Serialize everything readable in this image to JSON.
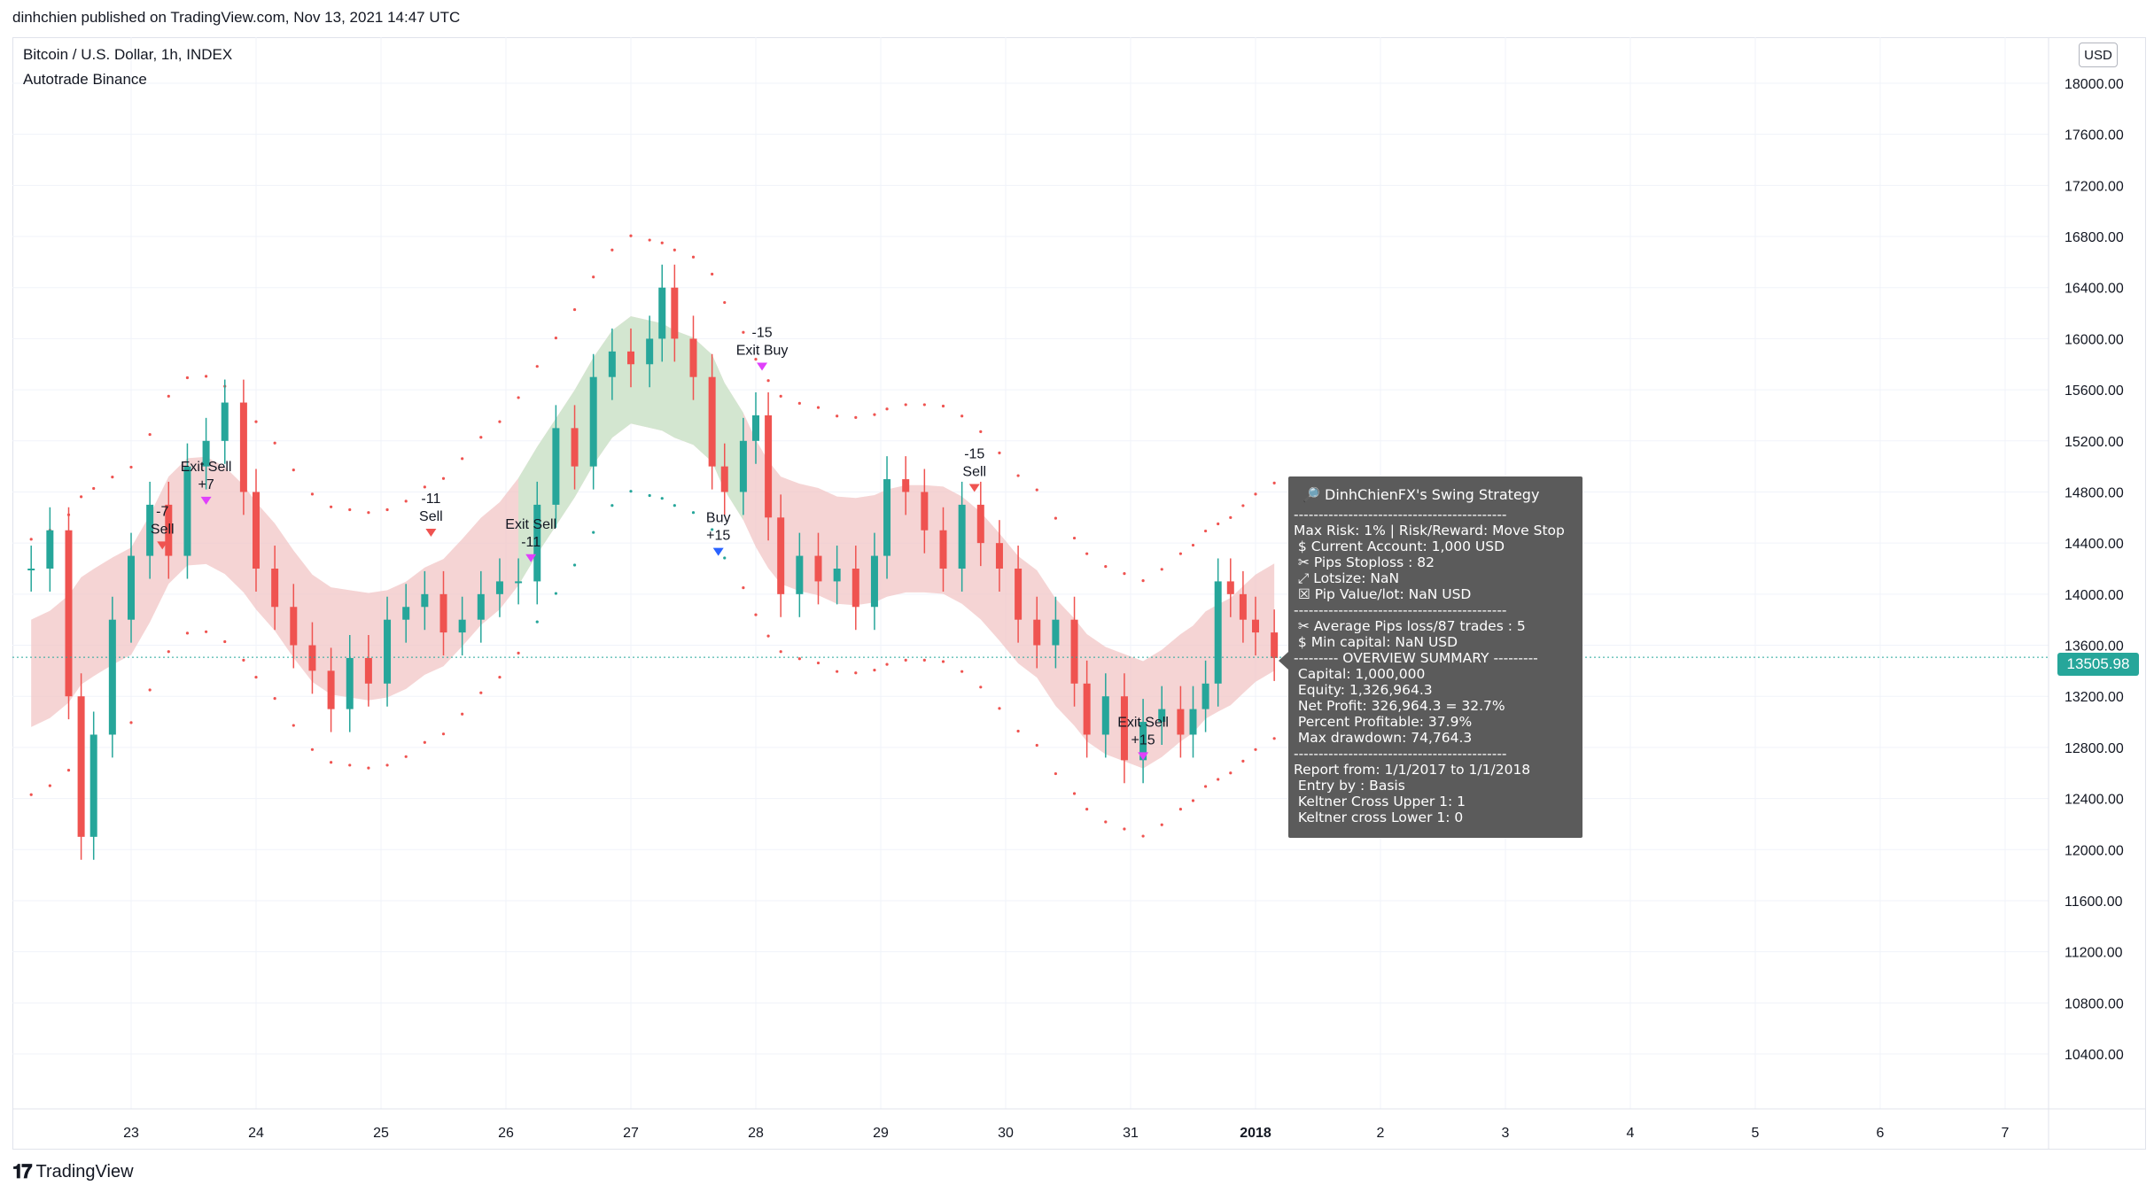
{
  "header": {
    "published_by": "dinhchien published on TradingView.com, Nov 13, 2021 14:47 UTC"
  },
  "chart_header": {
    "title": "Bitcoin / U.S. Dollar, 1h, INDEX",
    "subtitle": "Autotrade Binance",
    "currency_badge": "USD"
  },
  "footer": {
    "logo_text": "TradingView"
  },
  "chart_data": {
    "type": "candlestick",
    "title": "Bitcoin / U.S. Dollar, 1h, INDEX",
    "x_ticks": [
      "23",
      "24",
      "25",
      "26",
      "27",
      "28",
      "29",
      "30",
      "31",
      "2018",
      "2",
      "3",
      "4",
      "5",
      "6",
      "7"
    ],
    "y_ticks": [
      10400,
      10800,
      11200,
      11600,
      12000,
      12400,
      12800,
      13200,
      13600,
      14000,
      14400,
      14800,
      15200,
      15600,
      16000,
      16400,
      16800,
      17200,
      17600,
      18000
    ],
    "ylim": [
      10100,
      18300
    ],
    "last_price": "13505.98",
    "colors": {
      "up": "#26a69a",
      "down": "#ef5350",
      "band_red": "#f2c6c6",
      "band_green": "#cfe8cf",
      "stop_line": "#f44336",
      "trail": "#b71c3a",
      "grid": "#f0f3fa"
    },
    "series": [
      {
        "name": "price-close",
        "points": [
          [
            22.2,
            14200
          ],
          [
            22.35,
            14500
          ],
          [
            22.5,
            13200
          ],
          [
            22.6,
            12100
          ],
          [
            22.7,
            12900
          ],
          [
            22.85,
            13800
          ],
          [
            23.0,
            14300
          ],
          [
            23.15,
            14700
          ],
          [
            23.3,
            14300
          ],
          [
            23.45,
            15000
          ],
          [
            23.6,
            15200
          ],
          [
            23.75,
            15500
          ],
          [
            23.9,
            14800
          ],
          [
            24.0,
            14200
          ],
          [
            24.15,
            13900
          ],
          [
            24.3,
            13600
          ],
          [
            24.45,
            13400
          ],
          [
            24.6,
            13100
          ],
          [
            24.75,
            13500
          ],
          [
            24.9,
            13300
          ],
          [
            25.05,
            13800
          ],
          [
            25.2,
            13900
          ],
          [
            25.35,
            14000
          ],
          [
            25.5,
            13700
          ],
          [
            25.65,
            13800
          ],
          [
            25.8,
            14000
          ],
          [
            25.95,
            14100
          ],
          [
            26.1,
            14100
          ],
          [
            26.25,
            14700
          ],
          [
            26.4,
            15300
          ],
          [
            26.55,
            15000
          ],
          [
            26.7,
            15700
          ],
          [
            26.85,
            15900
          ],
          [
            27.0,
            15800
          ],
          [
            27.15,
            16000
          ],
          [
            27.25,
            16400
          ],
          [
            27.35,
            16000
          ],
          [
            27.5,
            15700
          ],
          [
            27.65,
            15000
          ],
          [
            27.75,
            14800
          ],
          [
            27.9,
            15200
          ],
          [
            28.0,
            15400
          ],
          [
            28.1,
            14600
          ],
          [
            28.2,
            14000
          ],
          [
            28.35,
            14300
          ],
          [
            28.5,
            14100
          ],
          [
            28.65,
            14200
          ],
          [
            28.8,
            13900
          ],
          [
            28.95,
            14300
          ],
          [
            29.05,
            14900
          ],
          [
            29.2,
            14800
          ],
          [
            29.35,
            14500
          ],
          [
            29.5,
            14200
          ],
          [
            29.65,
            14700
          ],
          [
            29.8,
            14400
          ],
          [
            29.95,
            14200
          ],
          [
            30.1,
            13800
          ],
          [
            30.25,
            13600
          ],
          [
            30.4,
            13800
          ],
          [
            30.55,
            13300
          ],
          [
            30.65,
            12900
          ],
          [
            30.8,
            13200
          ],
          [
            30.95,
            12700
          ],
          [
            31.1,
            13000
          ],
          [
            31.25,
            13100
          ],
          [
            31.4,
            12900
          ],
          [
            31.5,
            13100
          ],
          [
            31.6,
            13300
          ],
          [
            31.7,
            14100
          ],
          [
            31.8,
            14000
          ],
          [
            31.9,
            13800
          ],
          [
            32.0,
            13700
          ],
          [
            32.15,
            13500
          ]
        ]
      }
    ],
    "markers": [
      {
        "label_top": "-7",
        "label_bottom": "Sell",
        "color": "#ef5350"
      },
      {
        "label_top": "Exit Sell",
        "label_bottom": "+7",
        "color": "#e040fb"
      },
      {
        "label_top": "-11",
        "label_bottom": "Sell",
        "color": "#ef5350"
      },
      {
        "label_top": "Exit Sell",
        "label_bottom": "-11",
        "color": "#e040fb"
      },
      {
        "label_top": "Buy",
        "label_bottom": "+15",
        "color": "#2962ff"
      },
      {
        "label_top": "-15",
        "label_bottom": "Exit Buy",
        "color": "#e040fb"
      },
      {
        "label_top": "-15",
        "label_bottom": "Sell",
        "color": "#ef5350"
      },
      {
        "label_top": "Exit Sell",
        "label_bottom": "+15",
        "color": "#e040fb"
      }
    ]
  },
  "stats": {
    "title": "🔎 DinhChienFX's Swing Strategy",
    "lines": [
      "-------------------------------------------",
      "Max Risk: 1% | Risk/Reward: Move Stop",
      " $ Current Account: 1,000 USD",
      " ✂ Pips Stoploss : 82",
      " ⤢ Lotsize: NaN",
      " ☒ Pip Value/lot: NaN USD",
      "-------------------------------------------",
      " ✂ Average Pips loss/87 trades : 5",
      " $ Min capital: NaN USD",
      "--------- OVERVIEW SUMMARY ---------",
      " Capital: 1,000,000",
      " Equity: 1,326,964.3",
      " Net Profit: 326,964.3 = 32.7%",
      " Percent Profitable: 37.9%",
      " Max drawdown: 74,764.3",
      "-------------------------------------------",
      "Report from: 1/1/2017 to 1/1/2018",
      " Entry by : Basis",
      " Keltner Cross Upper 1: 1",
      " Keltner cross Lower 1: 0"
    ]
  }
}
